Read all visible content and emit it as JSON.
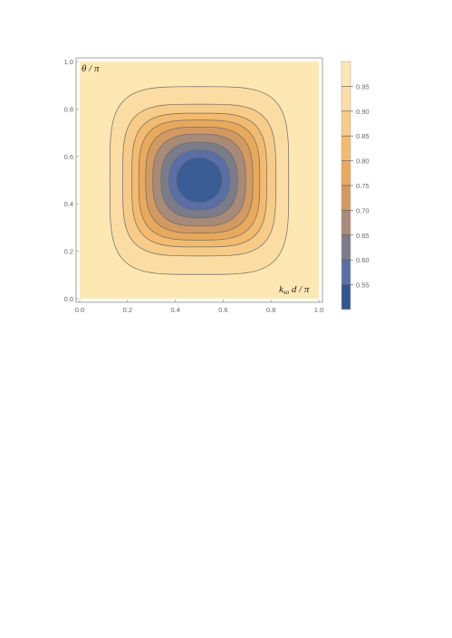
{
  "chart_data": {
    "type": "contour",
    "x_label": {
      "main": "k",
      "sub": "so",
      "rest": " d / π"
    },
    "y_label": "θ / π",
    "xlim": [
      0,
      1
    ],
    "ylim": [
      0,
      1
    ],
    "x_ticks": [
      "0.0",
      "0.2",
      "0.4",
      "0.6",
      "0.8",
      "1.0"
    ],
    "y_ticks": [
      "0.0",
      "0.2",
      "0.4",
      "0.6",
      "0.8",
      "1.0"
    ],
    "x_tick_values": [
      0,
      0.2,
      0.4,
      0.6,
      0.8,
      1.0
    ],
    "y_tick_values": [
      0,
      0.2,
      0.4,
      0.6,
      0.8,
      1.0
    ],
    "colorbar_levels": [
      "0.95",
      "0.90",
      "0.85",
      "0.80",
      "0.75",
      "0.70",
      "0.65",
      "0.60",
      "0.55"
    ],
    "colorbar_level_values": [
      0.95,
      0.9,
      0.85,
      0.8,
      0.75,
      0.7,
      0.65,
      0.6,
      0.55
    ],
    "colorbar_range": [
      0.5,
      1.0
    ],
    "center": [
      0.5,
      0.5
    ],
    "contours": [
      {
        "level": 0.95,
        "x_extent": [
          0.126,
          0.874
        ],
        "y_extent": [
          0.102,
          0.894
        ],
        "fill": "#fbdca2"
      },
      {
        "level": 0.9,
        "x_extent": [
          0.18,
          0.82
        ],
        "y_extent": [
          0.18,
          0.82
        ],
        "fill": "#f7cc88"
      },
      {
        "level": 0.85,
        "x_extent": [
          0.218,
          0.782
        ],
        "y_extent": [
          0.218,
          0.782
        ],
        "fill": "#f2bb6e"
      },
      {
        "level": 0.8,
        "x_extent": [
          0.247,
          0.753
        ],
        "y_extent": [
          0.247,
          0.753
        ],
        "fill": "#e9a95b"
      },
      {
        "level": 0.75,
        "x_extent": [
          0.276,
          0.724
        ],
        "y_extent": [
          0.276,
          0.724
        ],
        "fill": "#d29a60"
      },
      {
        "level": 0.7,
        "x_extent": [
          0.306,
          0.694
        ],
        "y_extent": [
          0.306,
          0.694
        ],
        "fill": "#a88a78"
      },
      {
        "level": 0.65,
        "x_extent": [
          0.34,
          0.66
        ],
        "y_extent": [
          0.34,
          0.66
        ],
        "fill": "#7a7c8a"
      },
      {
        "level": 0.6,
        "x_extent": [
          0.373,
          0.627
        ],
        "y_extent": [
          0.373,
          0.627
        ],
        "fill": "#5a6ea8"
      },
      {
        "level": 0.55,
        "x_extent": [
          0.404,
          0.596
        ],
        "y_extent": [
          0.404,
          0.596
        ],
        "fill": "#3a5d96"
      }
    ],
    "background_fill": "#fde8b4",
    "colorbar_colors": [
      "#fde8b4",
      "#fbdca2",
      "#f7cc88",
      "#f2bb6e",
      "#e9a95b",
      "#d29a60",
      "#a88a78",
      "#7a7c8a",
      "#5a6ea8",
      "#2f5690"
    ],
    "contour_line_color": "#6a6a6a"
  }
}
